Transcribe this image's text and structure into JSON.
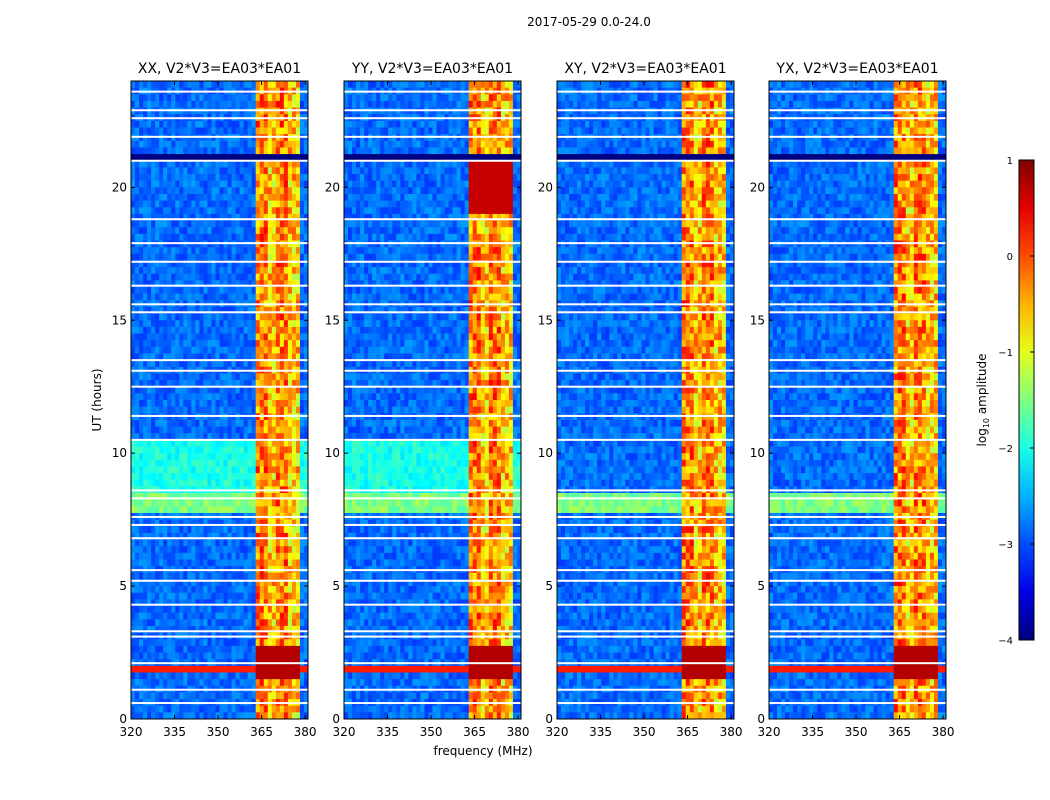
{
  "suptitle": "2017-05-29 0.0-24.0",
  "chart_data": {
    "type": "heatmap",
    "title": "2017-05-29 0.0-24.0",
    "xlabel": "frequency (MHz)",
    "ylabel": "UT (hours)",
    "xlim": [
      320,
      381
    ],
    "ylim": [
      0,
      24
    ],
    "xticks": [
      320,
      335,
      350,
      365,
      380
    ],
    "yticks": [
      0,
      5,
      10,
      15,
      20
    ],
    "panels": [
      {
        "title": "XX, V2*V3=EA03*EA01",
        "show_yticks": true
      },
      {
        "title": "YY, V2*V3=EA03*EA01",
        "show_yticks": true
      },
      {
        "title": "XY, V2*V3=EA03*EA01",
        "show_yticks": true
      },
      {
        "title": "YX, V2*V3=EA03*EA01",
        "show_yticks": true
      }
    ],
    "colorbar": {
      "label_prefix": "log",
      "label_sub": "10",
      "label_suffix": " amplitude",
      "range": [
        -4,
        1
      ],
      "ticks": [
        1,
        0,
        -1,
        -2,
        -3,
        -4
      ],
      "tick_labels": [
        "1",
        "0",
        "−1",
        "−2",
        "−3",
        "−4"
      ],
      "colormap": "jet"
    },
    "features": {
      "bright_band_MHz": [
        363,
        378
      ],
      "blank_rows_UT": [
        23.6,
        22.9,
        22.6,
        21.9,
        21.0,
        18.8,
        17.9,
        17.2,
        16.3,
        15.6,
        15.3,
        13.5,
        13.1,
        12.5,
        11.4,
        10.5,
        8.6,
        8.3,
        7.6,
        7.3,
        6.8,
        5.6,
        5.2,
        4.3,
        3.3,
        3.1,
        2.1,
        1.1,
        0.6
      ]
    }
  }
}
